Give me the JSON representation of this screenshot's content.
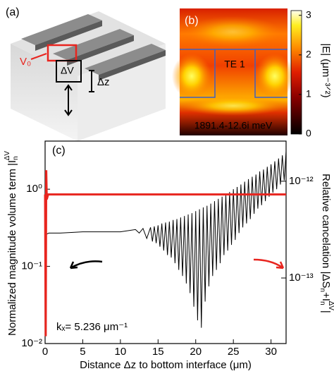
{
  "panel_a": {
    "label": "(a)",
    "v0": "V₀",
    "dv": "ΔV",
    "dz": "Δz"
  },
  "panel_b": {
    "label": "(b)",
    "mode": "TE 1",
    "energy": "1891.4-12.6i meV",
    "colorbar": {
      "label": "|E| (μm⁻³ᐟ²)",
      "lim": [
        0,
        3.12
      ],
      "ticks": [
        0,
        1,
        2,
        3
      ]
    }
  },
  "chart_data": {
    "type": "line",
    "label": "(c)",
    "annotation": "kₓ= 5.236 μm⁻¹",
    "xlabel": "Distance Δz to bottom interface (μm)",
    "ylabel": [
      "Normalized magnitude volume term |I",
      "n",
      "ΔV"
    ],
    "y2label": [
      "Relative cancelation  |ΔS",
      "n",
      "+I",
      "n",
      "ΔV",
      "|"
    ],
    "xlim": [
      0,
      32
    ],
    "xticks": [
      0,
      5,
      10,
      15,
      20,
      25,
      30
    ],
    "ylim": [
      0.01,
      4.2
    ],
    "yticks": [
      {
        "value": 0.01,
        "label": "10⁻²"
      },
      {
        "value": 0.1,
        "label": "10⁻¹"
      },
      {
        "value": 1,
        "label": "10⁰"
      }
    ],
    "y2lim": [
      2.1e-14,
      2.6e-12
    ],
    "y2ticks": [
      {
        "value": 1e-13,
        "label": "10⁻¹³"
      },
      {
        "value": 1e-12,
        "label": "10⁻¹²"
      }
    ],
    "log_y": true,
    "series": [
      {
        "color": "#000000",
        "axis": "y",
        "x": [
          0.05,
          0.15,
          0.5,
          2,
          5,
          8,
          10,
          12,
          12.5,
          13,
          13.5,
          14,
          14.25,
          14.5,
          14.75,
          15,
          15.25,
          15.5,
          15.75,
          16,
          16.25,
          16.5,
          16.75,
          17,
          17.25,
          17.5,
          17.75,
          18,
          18.25,
          18.5,
          18.75,
          19,
          19.25,
          19.5,
          19.75,
          20,
          20.25,
          20.5,
          20.75,
          21,
          21.25,
          21.5,
          21.75,
          22,
          22.25,
          22.5,
          22.75,
          23,
          23.25,
          23.5,
          23.75,
          24,
          24.25,
          24.5,
          24.75,
          25,
          25.25,
          25.5,
          25.75,
          26,
          26.25,
          26.5,
          26.75,
          27,
          27.25,
          27.5,
          27.75,
          28,
          28.25,
          28.5,
          28.75,
          29,
          29.25,
          29.5,
          29.75,
          30,
          30.25,
          30.5,
          30.75,
          31,
          31.25,
          31.5,
          31.75,
          32
        ],
        "values": [
          0.04,
          0.26,
          0.27,
          0.27,
          0.28,
          0.28,
          0.28,
          0.3,
          0.27,
          0.31,
          0.23,
          0.32,
          0.21,
          0.33,
          0.2,
          0.34,
          0.18,
          0.36,
          0.16,
          0.37,
          0.14,
          0.38,
          0.13,
          0.4,
          0.11,
          0.41,
          0.09,
          0.43,
          0.075,
          0.45,
          0.06,
          0.47,
          0.045,
          0.49,
          0.03,
          0.52,
          0.02,
          0.55,
          0.016,
          0.58,
          0.035,
          0.61,
          0.055,
          0.65,
          0.075,
          0.7,
          0.09,
          0.75,
          0.11,
          0.8,
          0.14,
          0.85,
          0.16,
          0.92,
          0.19,
          1.0,
          0.22,
          1.07,
          0.27,
          1.15,
          0.32,
          1.25,
          0.36,
          1.35,
          0.41,
          1.45,
          0.48,
          1.55,
          0.56,
          1.7,
          0.62,
          1.8,
          0.7,
          1.95,
          0.8,
          2.1,
          0.9,
          2.3,
          1.0,
          2.5,
          1.15,
          2.75,
          1.3,
          3.1
        ]
      },
      {
        "color": "#e8251f",
        "axis": "y2",
        "x": [
          0,
          0.08,
          0.15,
          0.22,
          0.4,
          32
        ],
        "values": [
          7.3e-13,
          2.5e-14,
          1.3e-12,
          6.5e-13,
          7.3e-13,
          7.3e-13
        ]
      }
    ]
  }
}
